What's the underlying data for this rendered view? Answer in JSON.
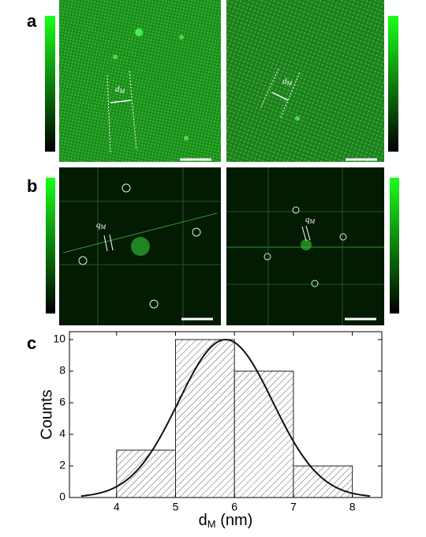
{
  "panel_labels": [
    "a",
    "b",
    "c"
  ],
  "annotations": {
    "a_left": [
      "d",
      "M"
    ],
    "a_right": [
      "d",
      "M"
    ],
    "b_left": [
      "q",
      "M"
    ],
    "b_right": [
      "q",
      "M"
    ]
  },
  "chart_data": {
    "type": "histogram",
    "bins": [
      4,
      5,
      6,
      7,
      8
    ],
    "values": [
      3,
      10,
      8,
      2
    ],
    "ylabel": "Counts",
    "xlabel": [
      "d",
      "M",
      " (nm)"
    ],
    "xlim": [
      3.2,
      8.5
    ],
    "ylim": [
      0,
      10.5
    ],
    "xticks": [
      4,
      5,
      6,
      7,
      8
    ],
    "yticks": [
      0,
      2,
      4,
      6,
      8,
      10
    ],
    "fit": {
      "mean": 5.85,
      "sigma": 0.8,
      "amplitude": 10,
      "x_range": [
        3.4,
        8.3
      ]
    }
  }
}
